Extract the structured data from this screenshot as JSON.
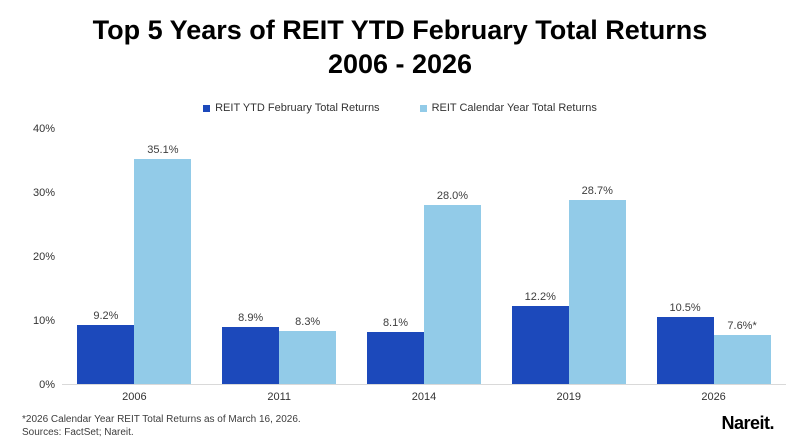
{
  "title": {
    "line1": "Top 5 Years of REIT YTD February Total Returns",
    "line2": "2006 - 2026"
  },
  "legend": {
    "items": [
      {
        "label": "REIT YTD February Total Returns",
        "color": "#1c49bb"
      },
      {
        "label": "REIT Calendar Year Total Returns",
        "color": "#92cbe8"
      }
    ]
  },
  "chart_data": {
    "type": "bar",
    "categories": [
      "2006",
      "2011",
      "2014",
      "2019",
      "2026"
    ],
    "series": [
      {
        "name": "REIT YTD February Total Returns",
        "color": "#1c49bb",
        "values": [
          9.2,
          8.9,
          8.1,
          12.2,
          10.5
        ],
        "labels": [
          "9.2%",
          "8.9%",
          "8.1%",
          "12.2%",
          "10.5%"
        ]
      },
      {
        "name": "REIT Calendar Year Total Returns",
        "color": "#92cbe8",
        "values": [
          35.1,
          8.3,
          28.0,
          28.7,
          7.6
        ],
        "labels": [
          "35.1%",
          "8.3%",
          "28.0%",
          "28.7%",
          "7.6%*"
        ]
      }
    ],
    "title": "Top 5 Years of REIT YTD February Total Returns 2006 - 2026",
    "xlabel": "",
    "ylabel": "",
    "ylim": [
      0,
      40
    ],
    "yticks": [
      "0%",
      "10%",
      "20%",
      "30%",
      "40%"
    ],
    "grid": false,
    "legend_position": "top"
  },
  "footnote": {
    "line1": "*2026 Calendar Year REIT Total Returns as of March 16, 2026.",
    "line2": "Sources: FactSet; Nareit."
  },
  "logo_text": "Nareit."
}
